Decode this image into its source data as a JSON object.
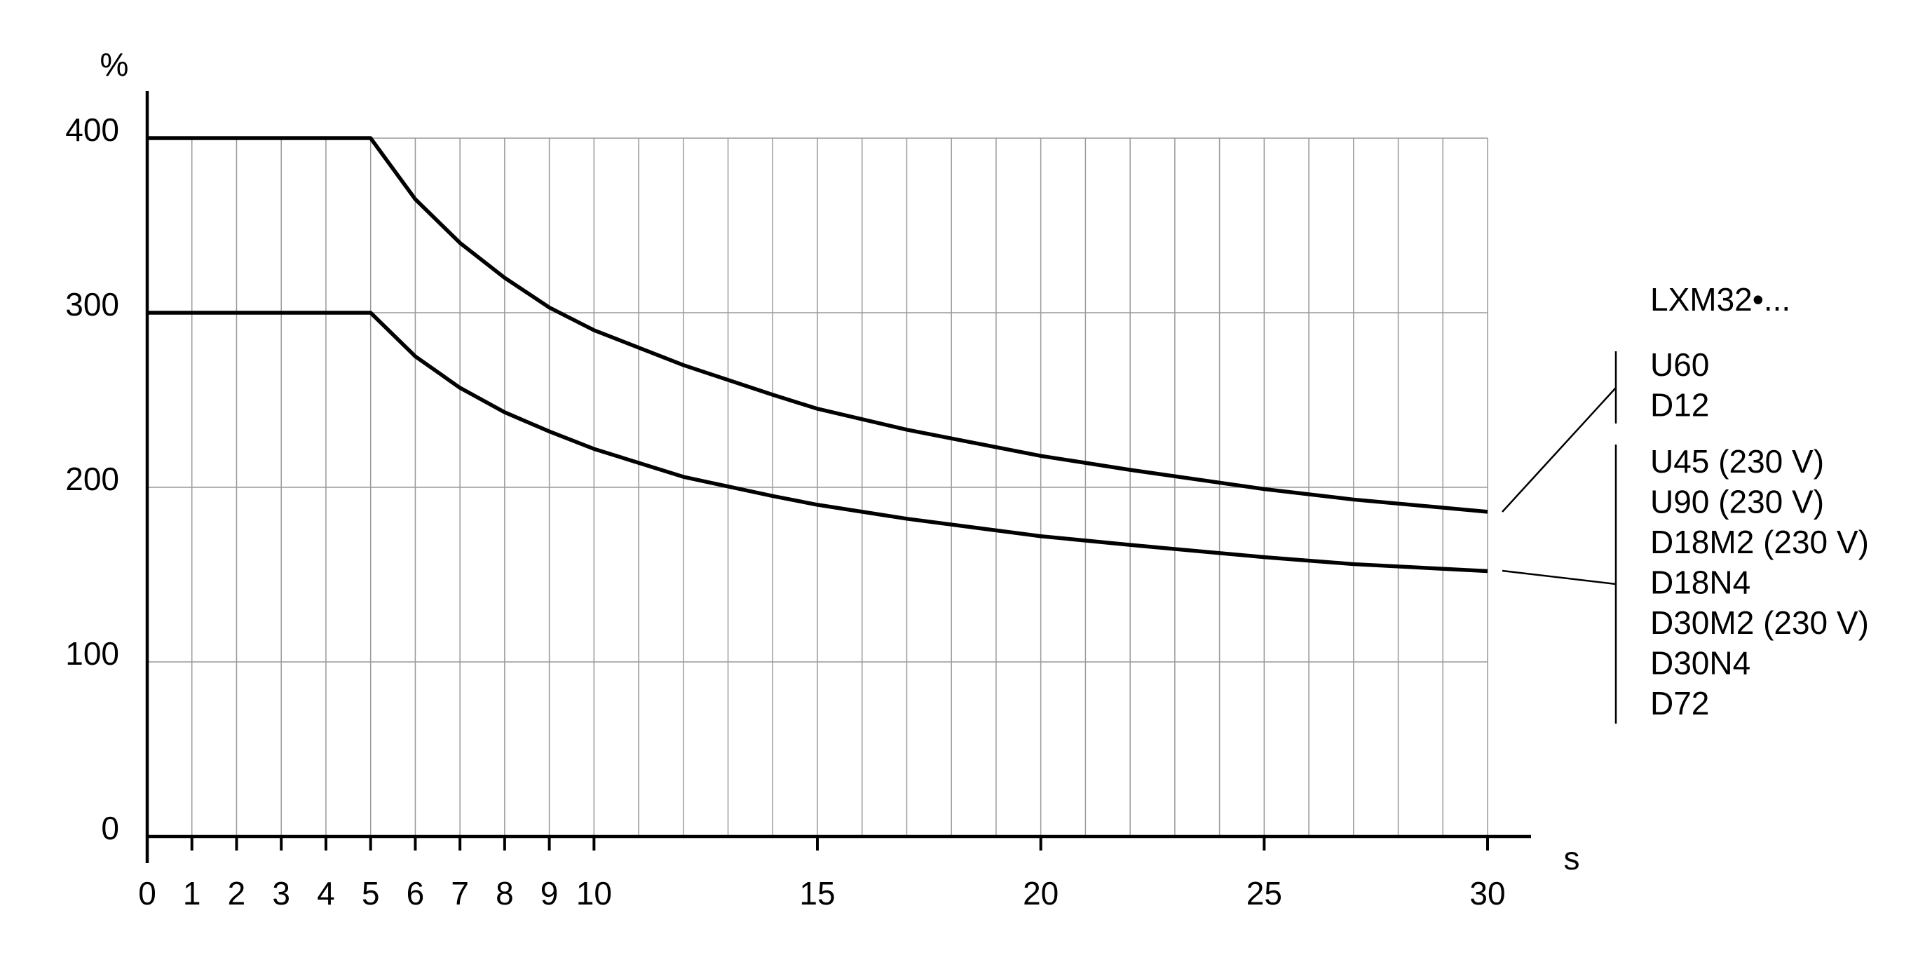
{
  "chart_data": {
    "type": "line",
    "y_unit": "%",
    "x_unit": "s",
    "legend_title": "LXM32•...",
    "x": [
      0,
      5,
      6,
      7,
      8,
      9,
      10,
      12,
      14,
      15,
      17,
      20,
      22,
      25,
      27,
      30
    ],
    "series": [
      {
        "labels": [
          "U60",
          "D12"
        ],
        "color": "#000000",
        "values": [
          400,
          400,
          365,
          340,
          320,
          303,
          290,
          270,
          253,
          245,
          233,
          218,
          210,
          199,
          193,
          186
        ]
      },
      {
        "labels": [
          "U45 (230 V)",
          "U90 (230 V)",
          "D18M2 (230 V)",
          "D18N4",
          "D30M2 (230 V)",
          "D30N4",
          "D72"
        ],
        "color": "#000000",
        "values": [
          300,
          300,
          275,
          257,
          243,
          232,
          222,
          206,
          195,
          190,
          182,
          172,
          167,
          160,
          156,
          152
        ]
      }
    ],
    "xlim": [
      0,
      30
    ],
    "ylim": [
      0,
      400
    ],
    "xticks": [
      0,
      1,
      2,
      3,
      4,
      5,
      6,
      7,
      8,
      9,
      10,
      15,
      20,
      25,
      30
    ],
    "yticks": [
      0,
      100,
      200,
      300,
      400
    ],
    "grid": true,
    "grid_step_x": 1
  }
}
